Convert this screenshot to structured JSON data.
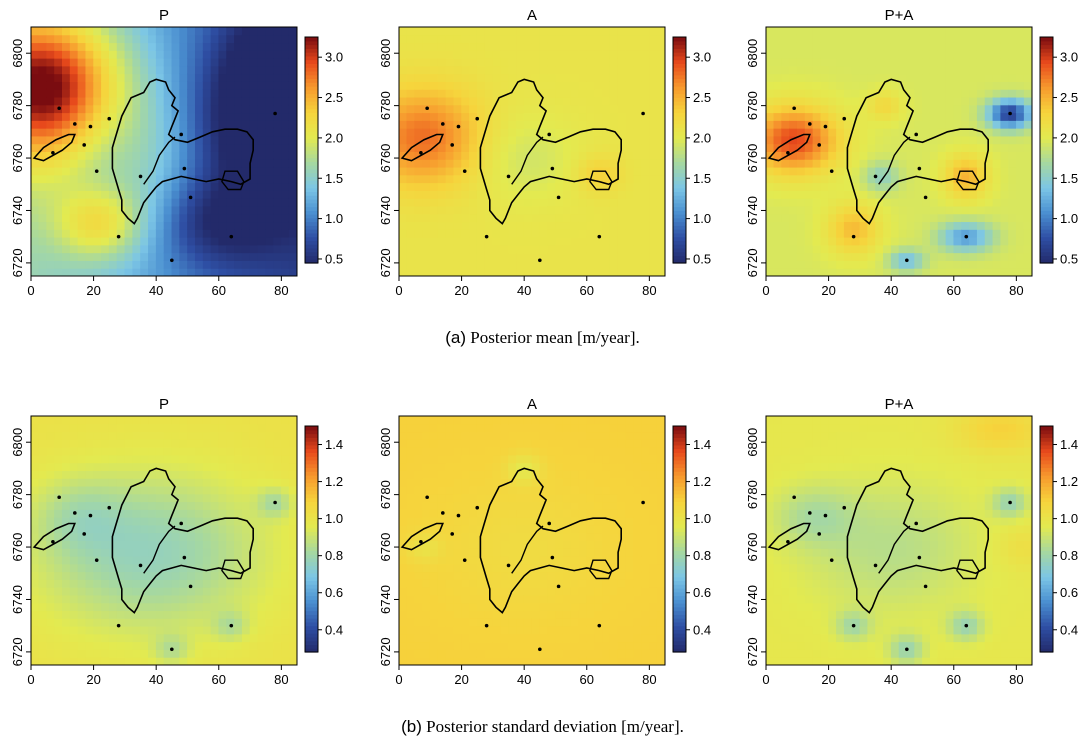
{
  "captions": {
    "a_label": "(a)",
    "a_text": "Posterior mean [m/year].",
    "b_label": "(b)",
    "b_text": "Posterior standard deviation [m/year]."
  },
  "axes": {
    "x_ticks": [
      0,
      20,
      40,
      60,
      80
    ],
    "y_ticks": [
      6720,
      6740,
      6760,
      6780,
      6800
    ],
    "xlim": [
      0,
      85
    ],
    "ylim": [
      6715,
      6810
    ]
  },
  "colormap": [
    "#232a6a",
    "#2e4ea3",
    "#4a8fd0",
    "#7cc6e6",
    "#a6d8a0",
    "#e3ea50",
    "#f6d43c",
    "#f79a2e",
    "#e84a1c",
    "#7a0c10"
  ],
  "observation_points": [
    [
      9,
      6779
    ],
    [
      14,
      6773
    ],
    [
      17,
      6765
    ],
    [
      19,
      6772
    ],
    [
      25,
      6775
    ],
    [
      7,
      6762
    ],
    [
      21,
      6755
    ],
    [
      28,
      6730
    ],
    [
      35,
      6753
    ],
    [
      48,
      6769
    ],
    [
      49,
      6756
    ],
    [
      51,
      6745
    ],
    [
      45,
      6721
    ],
    [
      64,
      6730
    ],
    [
      78,
      6777
    ]
  ],
  "chart_data": [
    {
      "type": "heatmap",
      "row": "a",
      "title": "P",
      "colorbar_ticks": [
        0.5,
        1.0,
        1.5,
        2.0,
        2.5,
        3.0
      ],
      "clim": [
        0.45,
        3.25
      ],
      "field": {
        "base": 1.6,
        "trend": [
          -0.011,
          0.0
        ],
        "features": [
          [
            5,
            6790,
            18,
            18,
            1.4
          ],
          [
            5,
            6775,
            12,
            20,
            0.5
          ],
          [
            22,
            6735,
            10,
            10,
            0.8
          ],
          [
            75,
            6775,
            15,
            22,
            -0.8
          ],
          [
            78,
            6800,
            12,
            20,
            -0.3
          ],
          [
            60,
            6735,
            14,
            12,
            -0.5
          ],
          [
            38,
            6760,
            10,
            20,
            0.3
          ]
        ]
      }
    },
    {
      "type": "heatmap",
      "row": "a",
      "title": "A",
      "colorbar_ticks": [
        0.5,
        1.0,
        1.5,
        2.0,
        2.5,
        3.0
      ],
      "clim": [
        0.45,
        3.25
      ],
      "field": {
        "base": 2.1,
        "trend": [
          0.0,
          0.0
        ],
        "features": [
          [
            8,
            6768,
            13,
            13,
            0.7
          ],
          [
            64,
            6754,
            5,
            5,
            0.25
          ],
          [
            40,
            6760,
            12,
            12,
            -0.2
          ]
        ]
      }
    },
    {
      "type": "heatmap",
      "row": "a",
      "title": "P+A",
      "colorbar_ticks": [
        0.5,
        1.0,
        1.5,
        2.0,
        2.5,
        3.0
      ],
      "clim": [
        0.45,
        3.25
      ],
      "field": {
        "base": 1.95,
        "trend": [
          0.0,
          0.0
        ],
        "features": [
          [
            9,
            6767,
            10,
            9,
            1.0
          ],
          [
            78,
            6777,
            5,
            4,
            -1.3
          ],
          [
            64,
            6730,
            6,
            4,
            -0.8
          ],
          [
            45,
            6721,
            4,
            3,
            -0.6
          ],
          [
            64,
            6753,
            5,
            6,
            0.55
          ],
          [
            28,
            6733,
            6,
            7,
            0.5
          ],
          [
            37,
            6753,
            4,
            4,
            -0.4
          ],
          [
            38,
            6780,
            4,
            4,
            0.3
          ]
        ]
      }
    },
    {
      "type": "heatmap",
      "row": "b",
      "title": "P",
      "colorbar_ticks": [
        0.4,
        0.6,
        0.8,
        1.0,
        1.2,
        1.4
      ],
      "clim": [
        0.28,
        1.5
      ],
      "field": {
        "base": 1.02,
        "trend": [
          0.0,
          0.0
        ],
        "features": [
          [
            38,
            6758,
            26,
            22,
            -0.25
          ],
          [
            15,
            6772,
            10,
            10,
            -0.1
          ],
          [
            78,
            6777,
            4,
            4,
            -0.15
          ],
          [
            45,
            6721,
            4,
            4,
            -0.12
          ],
          [
            64,
            6730,
            4,
            4,
            -0.12
          ]
        ]
      }
    },
    {
      "type": "heatmap",
      "row": "b",
      "title": "A",
      "colorbar_ticks": [
        0.4,
        0.6,
        0.8,
        1.0,
        1.2,
        1.4
      ],
      "clim": [
        0.28,
        1.5
      ],
      "field": {
        "base": 1.1,
        "trend": [
          0.0,
          0.0
        ],
        "features": [
          [
            40,
            6790,
            4,
            4,
            -0.12
          ],
          [
            8,
            6760,
            4,
            4,
            -0.08
          ],
          [
            40,
            6760,
            20,
            18,
            -0.05
          ]
        ]
      }
    },
    {
      "type": "heatmap",
      "row": "b",
      "title": "P+A",
      "colorbar_ticks": [
        0.4,
        0.6,
        0.8,
        1.0,
        1.2,
        1.4
      ],
      "clim": [
        0.28,
        1.5
      ],
      "field": {
        "base": 0.98,
        "trend": [
          0.0,
          0.0
        ],
        "features": [
          [
            40,
            6760,
            20,
            18,
            -0.12
          ],
          [
            15,
            6772,
            9,
            8,
            -0.12
          ],
          [
            78,
            6777,
            4,
            4,
            -0.18
          ],
          [
            45,
            6721,
            4,
            4,
            -0.18
          ],
          [
            64,
            6730,
            4,
            4,
            -0.18
          ],
          [
            28,
            6730,
            4,
            4,
            -0.15
          ],
          [
            75,
            6805,
            10,
            6,
            0.12
          ],
          [
            82,
            6760,
            6,
            6,
            0.06
          ]
        ]
      }
    }
  ]
}
